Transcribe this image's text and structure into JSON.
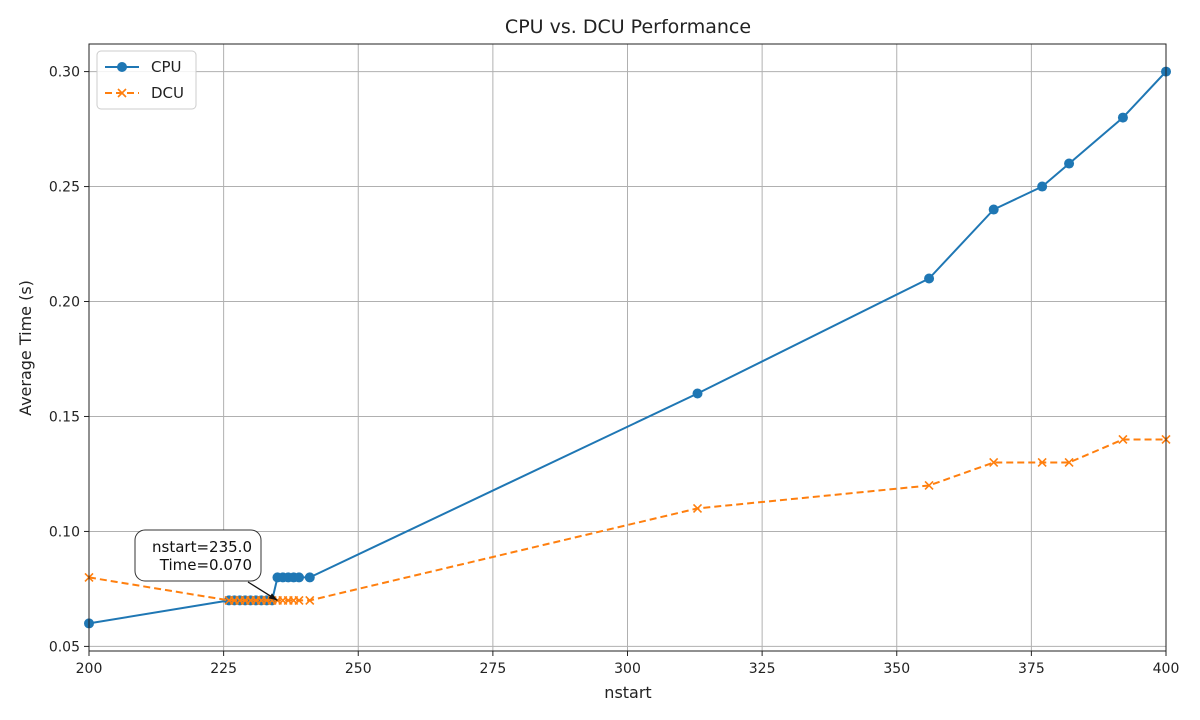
{
  "chart_data": {
    "type": "line",
    "title": "CPU vs. DCU Performance",
    "xlabel": "nstart",
    "ylabel": "Average Time (s)",
    "xlim": [
      200,
      400
    ],
    "ylim": [
      0.048,
      0.312
    ],
    "xticks": [
      "200",
      "225",
      "250",
      "275",
      "300",
      "325",
      "350",
      "375",
      "400"
    ],
    "yticks": [
      "0.05",
      "0.10",
      "0.15",
      "0.20",
      "0.25",
      "0.30"
    ],
    "grid": true,
    "legend_position": "top-left",
    "series": [
      {
        "name": "CPU",
        "color": "#1f77b4",
        "line_style": "solid",
        "marker": "circle",
        "x": [
          200,
          226,
          227,
          228,
          229,
          230,
          231,
          232,
          233,
          234,
          235,
          236,
          237,
          238,
          239,
          241,
          313,
          356,
          368,
          377,
          382,
          392,
          400
        ],
        "y": [
          0.06,
          0.07,
          0.07,
          0.07,
          0.07,
          0.07,
          0.07,
          0.07,
          0.07,
          0.07,
          0.08,
          0.08,
          0.08,
          0.08,
          0.08,
          0.08,
          0.16,
          0.21,
          0.24,
          0.25,
          0.26,
          0.28,
          0.3
        ]
      },
      {
        "name": "DCU",
        "color": "#ff7f0e",
        "line_style": "dashed",
        "marker": "x",
        "x": [
          200,
          226,
          227,
          228,
          229,
          230,
          231,
          232,
          233,
          234,
          235,
          236,
          237,
          238,
          239,
          241,
          313,
          356,
          368,
          377,
          382,
          392,
          400
        ],
        "y": [
          0.08,
          0.07,
          0.07,
          0.07,
          0.07,
          0.07,
          0.07,
          0.07,
          0.07,
          0.07,
          0.07,
          0.07,
          0.07,
          0.07,
          0.07,
          0.07,
          0.11,
          0.12,
          0.13,
          0.13,
          0.13,
          0.14,
          0.14
        ]
      }
    ],
    "annotation": {
      "line1": "nstart=235.0",
      "line2": "Time=0.070",
      "x": 235,
      "y": 0.07
    }
  }
}
